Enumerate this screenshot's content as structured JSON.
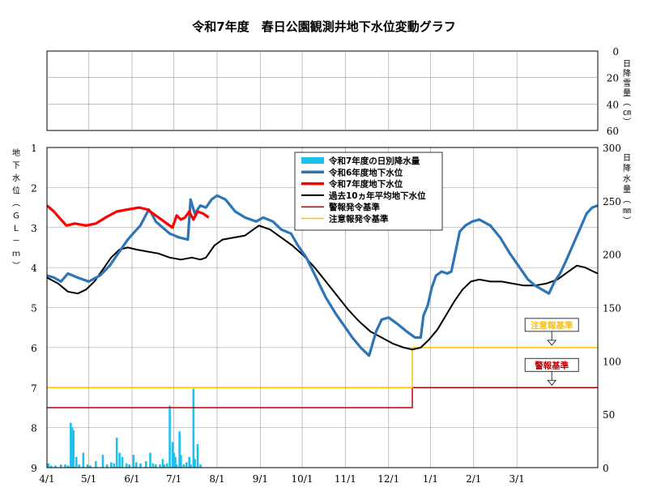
{
  "chart_data": {
    "type": "line",
    "title": "令和7年度　春日公園観測井地下水位変動グラフ",
    "x_ticks": [
      "4/1",
      "5/1",
      "6/1",
      "7/1",
      "8/1",
      "9/1",
      "10/1",
      "11/1",
      "12/1",
      "1/1",
      "2/1",
      "3/1"
    ],
    "snow_axis": {
      "label": "日降雪量（㎝）",
      "ticks": [
        0,
        20,
        40,
        60
      ],
      "range": [
        0,
        60
      ],
      "inverted": true
    },
    "level_axis": {
      "label": "地下水位（ＧＬ－ｍ）",
      "ticks": [
        1,
        2,
        3,
        4,
        5,
        6,
        7,
        8,
        9
      ],
      "range": [
        1,
        9
      ],
      "inverted": true
    },
    "rain_axis": {
      "label": "日降水量（㎜）",
      "ticks": [
        0,
        50,
        100,
        150,
        200,
        250,
        300
      ],
      "range": [
        0,
        300
      ]
    },
    "grid": true,
    "legend": {
      "placement": "top-center",
      "entries": [
        {
          "key": "rain",
          "label": "令和7年度の日別降水量",
          "color": "#1fbfee"
        },
        {
          "key": "r6",
          "label": "令和6年度地下水位",
          "color": "#2e75b6"
        },
        {
          "key": "r7",
          "label": "令和7年度地下水位",
          "color": "#ff0000"
        },
        {
          "key": "avg",
          "label": "過去10ヵ年平均地下水位",
          "color": "#000000"
        },
        {
          "key": "warn",
          "label": "警報発令基準",
          "color": "#c00000"
        },
        {
          "key": "caution",
          "label": "注意報発令基準",
          "color": "#ffc000"
        }
      ]
    },
    "series": [
      {
        "key": "r6",
        "unit": "GL-m",
        "points": [
          [
            0,
            4.2
          ],
          [
            5,
            4.25
          ],
          [
            10,
            4.35
          ],
          [
            15,
            4.15
          ],
          [
            22,
            4.25
          ],
          [
            30,
            4.35
          ],
          [
            38,
            4.2
          ],
          [
            45,
            3.95
          ],
          [
            52,
            3.6
          ],
          [
            58,
            3.3
          ],
          [
            63,
            3.1
          ],
          [
            67,
            2.95
          ],
          [
            70,
            2.75
          ],
          [
            73,
            2.55
          ],
          [
            75,
            2.65
          ],
          [
            78,
            2.85
          ],
          [
            83,
            3.0
          ],
          [
            88,
            3.15
          ],
          [
            95,
            3.25
          ],
          [
            101,
            3.3
          ],
          [
            103,
            2.3
          ],
          [
            106,
            2.65
          ],
          [
            110,
            2.45
          ],
          [
            114,
            2.5
          ],
          [
            118,
            2.3
          ],
          [
            122,
            2.2
          ],
          [
            128,
            2.3
          ],
          [
            135,
            2.6
          ],
          [
            142,
            2.75
          ],
          [
            150,
            2.85
          ],
          [
            155,
            2.75
          ],
          [
            162,
            2.85
          ],
          [
            168,
            3.05
          ],
          [
            175,
            3.15
          ],
          [
            180,
            3.45
          ],
          [
            186,
            3.75
          ],
          [
            193,
            4.25
          ],
          [
            200,
            4.75
          ],
          [
            207,
            5.15
          ],
          [
            213,
            5.45
          ],
          [
            219,
            5.75
          ],
          [
            225,
            6.0
          ],
          [
            231,
            6.2
          ],
          [
            236,
            5.6
          ],
          [
            240,
            5.3
          ],
          [
            245,
            5.25
          ],
          [
            251,
            5.4
          ],
          [
            258,
            5.6
          ],
          [
            264,
            5.75
          ],
          [
            268,
            5.75
          ],
          [
            270,
            5.2
          ],
          [
            273,
            4.95
          ],
          [
            276,
            4.5
          ],
          [
            279,
            4.2
          ],
          [
            283,
            4.1
          ],
          [
            287,
            4.15
          ],
          [
            290,
            4.1
          ],
          [
            293,
            3.6
          ],
          [
            296,
            3.1
          ],
          [
            300,
            2.95
          ],
          [
            305,
            2.85
          ],
          [
            310,
            2.8
          ],
          [
            318,
            2.95
          ],
          [
            325,
            3.25
          ],
          [
            332,
            3.65
          ],
          [
            339,
            4.0
          ],
          [
            345,
            4.3
          ],
          [
            350,
            4.45
          ],
          [
            355,
            4.55
          ],
          [
            360,
            4.65
          ],
          [
            364,
            4.35
          ],
          [
            368,
            4.15
          ],
          [
            372,
            3.85
          ],
          [
            377,
            3.45
          ],
          [
            382,
            3.05
          ],
          [
            387,
            2.65
          ],
          [
            391,
            2.5
          ],
          [
            395,
            2.45
          ]
        ]
      },
      {
        "key": "r7",
        "unit": "GL-m",
        "points": [
          [
            0,
            2.45
          ],
          [
            5,
            2.6
          ],
          [
            10,
            2.8
          ],
          [
            14,
            2.95
          ],
          [
            20,
            2.9
          ],
          [
            28,
            2.95
          ],
          [
            35,
            2.9
          ],
          [
            42,
            2.75
          ],
          [
            50,
            2.6
          ],
          [
            58,
            2.55
          ],
          [
            66,
            2.5
          ],
          [
            72,
            2.55
          ],
          [
            78,
            2.7
          ],
          [
            84,
            2.85
          ],
          [
            90,
            3.0
          ],
          [
            93,
            2.7
          ],
          [
            96,
            2.8
          ],
          [
            99,
            2.75
          ],
          [
            102,
            2.6
          ],
          [
            105,
            2.8
          ],
          [
            108,
            2.6
          ],
          [
            112,
            2.65
          ],
          [
            116,
            2.75
          ]
        ]
      },
      {
        "key": "avg",
        "unit": "GL-m",
        "points": [
          [
            0,
            4.25
          ],
          [
            8,
            4.4
          ],
          [
            15,
            4.6
          ],
          [
            22,
            4.65
          ],
          [
            28,
            4.55
          ],
          [
            34,
            4.35
          ],
          [
            40,
            4.05
          ],
          [
            46,
            3.75
          ],
          [
            52,
            3.55
          ],
          [
            58,
            3.5
          ],
          [
            64,
            3.55
          ],
          [
            72,
            3.6
          ],
          [
            80,
            3.65
          ],
          [
            88,
            3.75
          ],
          [
            96,
            3.8
          ],
          [
            104,
            3.75
          ],
          [
            110,
            3.8
          ],
          [
            114,
            3.75
          ],
          [
            120,
            3.45
          ],
          [
            126,
            3.3
          ],
          [
            134,
            3.25
          ],
          [
            142,
            3.2
          ],
          [
            148,
            3.05
          ],
          [
            152,
            2.95
          ],
          [
            160,
            3.05
          ],
          [
            168,
            3.25
          ],
          [
            176,
            3.45
          ],
          [
            184,
            3.7
          ],
          [
            192,
            4.0
          ],
          [
            200,
            4.35
          ],
          [
            208,
            4.7
          ],
          [
            216,
            5.05
          ],
          [
            224,
            5.35
          ],
          [
            232,
            5.6
          ],
          [
            240,
            5.75
          ],
          [
            248,
            5.9
          ],
          [
            256,
            6.0
          ],
          [
            262,
            6.05
          ],
          [
            268,
            6.0
          ],
          [
            274,
            5.8
          ],
          [
            280,
            5.55
          ],
          [
            286,
            5.2
          ],
          [
            292,
            4.85
          ],
          [
            298,
            4.55
          ],
          [
            304,
            4.35
          ],
          [
            310,
            4.3
          ],
          [
            318,
            4.35
          ],
          [
            326,
            4.35
          ],
          [
            334,
            4.4
          ],
          [
            342,
            4.45
          ],
          [
            350,
            4.45
          ],
          [
            358,
            4.4
          ],
          [
            366,
            4.3
          ],
          [
            374,
            4.1
          ],
          [
            380,
            3.95
          ],
          [
            386,
            4.0
          ],
          [
            392,
            4.1
          ],
          [
            395,
            4.15
          ]
        ]
      }
    ],
    "thresholds": [
      {
        "key": "warn",
        "unit": "GL-m",
        "segments": [
          {
            "from": 0,
            "to": 262,
            "value": 7.5
          },
          {
            "from": 262,
            "to": 395,
            "value": 7.0
          }
        ]
      },
      {
        "key": "caution",
        "unit": "GL-m",
        "segments": [
          {
            "from": 0,
            "to": 262,
            "value": 7.0
          },
          {
            "from": 262,
            "to": 395,
            "value": 6.0
          }
        ]
      }
    ],
    "rain": {
      "unit": "mm",
      "values": [
        [
          1,
          4
        ],
        [
          3,
          2
        ],
        [
          6,
          2
        ],
        [
          10,
          3
        ],
        [
          13,
          3
        ],
        [
          15,
          2
        ],
        [
          17,
          42
        ],
        [
          18,
          38
        ],
        [
          19,
          35
        ],
        [
          21,
          10
        ],
        [
          23,
          3
        ],
        [
          26,
          14
        ],
        [
          29,
          3
        ],
        [
          31,
          2
        ],
        [
          35,
          6
        ],
        [
          40,
          12
        ],
        [
          43,
          3
        ],
        [
          46,
          5
        ],
        [
          48,
          4
        ],
        [
          50,
          28
        ],
        [
          52,
          14
        ],
        [
          54,
          10
        ],
        [
          57,
          4
        ],
        [
          59,
          3
        ],
        [
          62,
          12
        ],
        [
          64,
          5
        ],
        [
          67,
          4
        ],
        [
          71,
          6
        ],
        [
          74,
          14
        ],
        [
          76,
          4
        ],
        [
          78,
          3
        ],
        [
          81,
          3
        ],
        [
          83,
          8
        ],
        [
          84,
          3
        ],
        [
          86,
          4
        ],
        [
          88,
          58
        ],
        [
          90,
          24
        ],
        [
          91,
          14
        ],
        [
          92,
          10
        ],
        [
          93,
          3
        ],
        [
          95,
          34
        ],
        [
          96,
          12
        ],
        [
          98,
          3
        ],
        [
          100,
          5
        ],
        [
          102,
          10
        ],
        [
          103,
          3
        ],
        [
          105,
          74
        ],
        [
          106,
          8
        ],
        [
          108,
          22
        ],
        [
          110,
          3
        ]
      ]
    },
    "annotations": [
      {
        "key": "caution_label",
        "text": "注意報基準",
        "color": "#ffc000",
        "at_x": 362,
        "at_value": 6.0
      },
      {
        "key": "warn_label",
        "text": "警報基準",
        "color": "#c00000",
        "at_x": 362,
        "at_value": 7.0
      }
    ]
  }
}
